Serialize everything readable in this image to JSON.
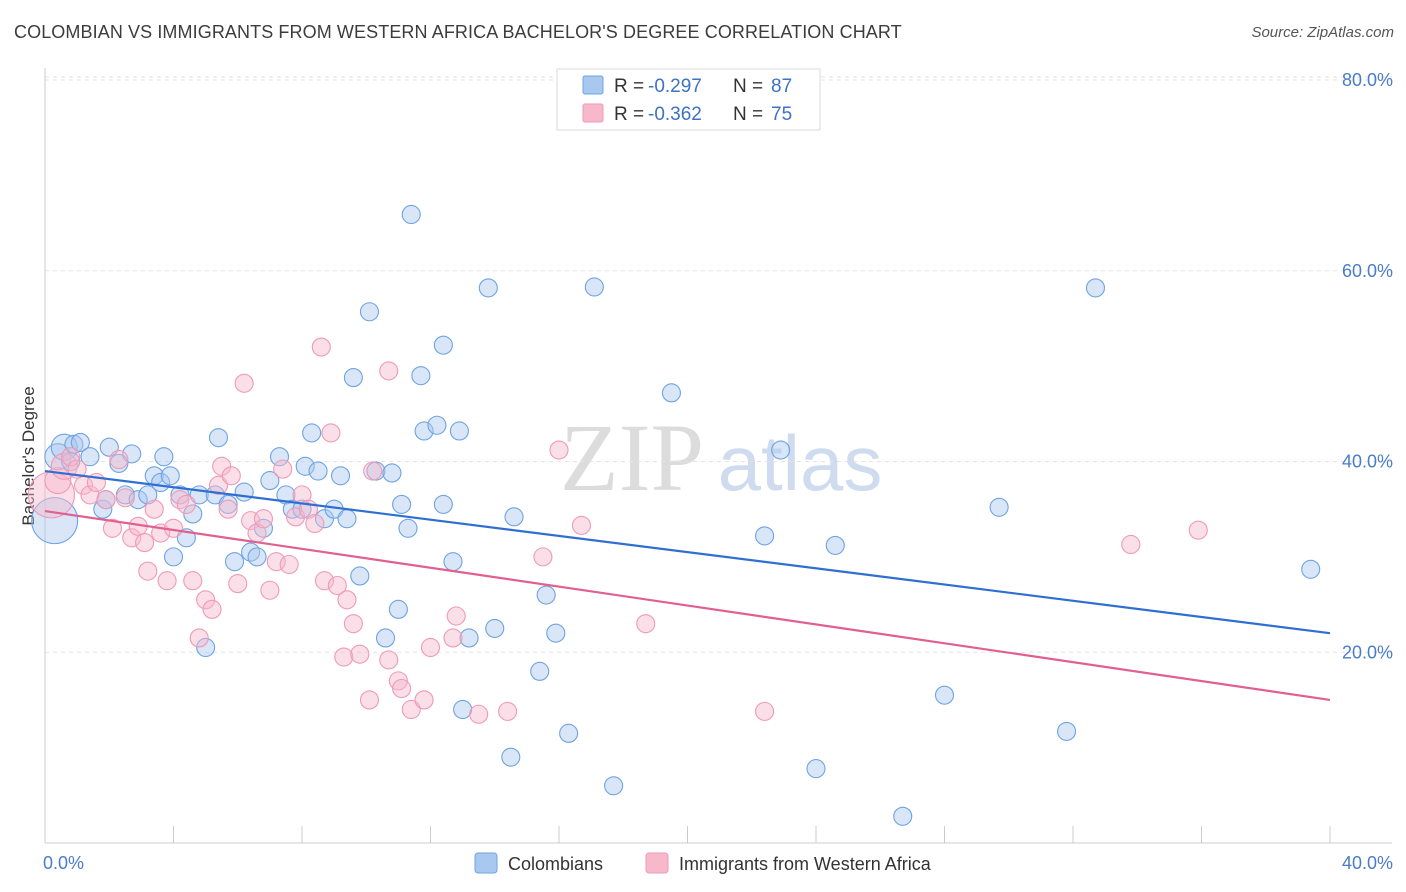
{
  "header": {
    "title": "COLOMBIAN VS IMMIGRANTS FROM WESTERN AFRICA BACHELOR'S DEGREE CORRELATION CHART",
    "source": "Source: ZipAtlas.com"
  },
  "watermark": {
    "zip": "ZIP",
    "atlas": "atlas"
  },
  "legend_top": {
    "rows": [
      {
        "r_label": "R =",
        "r_value": "-0.297",
        "n_label": "N =",
        "n_value": "87",
        "color": "#a9c8f0"
      },
      {
        "r_label": "R =",
        "r_value": "-0.362",
        "n_label": "N =",
        "n_value": "75",
        "color": "#f7b8cc"
      }
    ]
  },
  "chart_data": {
    "type": "scatter",
    "title": "COLOMBIAN VS IMMIGRANTS FROM WESTERN AFRICA BACHELOR'S DEGREE CORRELATION CHART",
    "xlabel": "",
    "ylabel": "Bachelor's Degree",
    "xlim": [
      0,
      40
    ],
    "ylim": [
      0,
      80
    ],
    "x_ticks_labeled": [
      "0.0%",
      "40.0%"
    ],
    "y_ticks": [
      {
        "value": 20,
        "label": "20.0%"
      },
      {
        "value": 40,
        "label": "40.0%"
      },
      {
        "value": 60,
        "label": "60.0%"
      },
      {
        "value": 80,
        "label": "80.0%"
      }
    ],
    "grid": "horizontal dashed",
    "legend_placement": "bottom-center",
    "series": [
      {
        "name": "Colombians",
        "color": "#6fa3e3",
        "fill": "#a9c8f0",
        "line_color": "#2f6fd1",
        "trend": {
          "x": [
            0,
            40
          ],
          "y": [
            39.0,
            22.0
          ]
        },
        "points": [
          [
            0.3,
            33.8,
            3
          ],
          [
            0.4,
            40.5,
            2
          ],
          [
            0.6,
            41.5,
            2
          ],
          [
            0.8,
            40.0,
            1
          ],
          [
            0.9,
            41.8,
            1
          ],
          [
            1.1,
            42.0,
            1
          ],
          [
            1.4,
            40.5,
            1
          ],
          [
            1.8,
            35.0,
            1
          ],
          [
            1.9,
            36.0,
            1
          ],
          [
            2.0,
            41.5,
            1
          ],
          [
            2.3,
            39.8,
            1
          ],
          [
            2.5,
            36.5,
            1
          ],
          [
            2.7,
            40.8,
            1
          ],
          [
            2.9,
            36.0,
            1
          ],
          [
            3.2,
            36.5,
            1
          ],
          [
            3.4,
            38.5,
            1
          ],
          [
            3.6,
            37.8,
            1
          ],
          [
            3.7,
            40.5,
            1
          ],
          [
            3.9,
            38.5,
            1
          ],
          [
            4.0,
            30.0,
            1
          ],
          [
            4.2,
            36.5,
            1
          ],
          [
            4.4,
            32.0,
            1
          ],
          [
            4.6,
            34.5,
            1
          ],
          [
            4.8,
            36.5,
            1
          ],
          [
            5.0,
            20.5,
            1
          ],
          [
            5.3,
            36.5,
            1
          ],
          [
            5.4,
            42.5,
            1
          ],
          [
            5.7,
            35.5,
            1
          ],
          [
            5.9,
            29.5,
            1
          ],
          [
            6.2,
            36.8,
            1
          ],
          [
            6.4,
            30.5,
            1
          ],
          [
            6.6,
            30.0,
            1
          ],
          [
            6.8,
            33.0,
            1
          ],
          [
            7.0,
            38.0,
            1
          ],
          [
            7.3,
            40.5,
            1
          ],
          [
            7.5,
            36.5,
            1
          ],
          [
            7.7,
            35.0,
            1
          ],
          [
            8.0,
            35.0,
            1
          ],
          [
            8.1,
            39.5,
            1
          ],
          [
            8.3,
            43.0,
            1
          ],
          [
            8.5,
            39.0,
            1
          ],
          [
            8.7,
            34.0,
            1
          ],
          [
            9.0,
            35.0,
            1
          ],
          [
            9.2,
            38.5,
            1
          ],
          [
            9.4,
            34.0,
            1
          ],
          [
            9.6,
            48.8,
            1
          ],
          [
            9.8,
            28.0,
            1
          ],
          [
            10.1,
            55.7,
            1
          ],
          [
            10.3,
            39.0,
            1
          ],
          [
            10.6,
            21.5,
            1
          ],
          [
            10.8,
            38.8,
            1
          ],
          [
            11.0,
            24.5,
            1
          ],
          [
            11.1,
            35.5,
            1
          ],
          [
            11.3,
            33.0,
            1
          ],
          [
            11.4,
            65.9,
            1
          ],
          [
            11.7,
            49.0,
            1
          ],
          [
            11.8,
            43.2,
            1
          ],
          [
            12.2,
            43.8,
            1
          ],
          [
            12.4,
            52.2,
            1
          ],
          [
            12.4,
            35.5,
            1
          ],
          [
            12.7,
            29.5,
            1
          ],
          [
            12.9,
            43.2,
            1
          ],
          [
            13.0,
            14.0,
            1
          ],
          [
            13.2,
            21.5,
            1
          ],
          [
            13.8,
            58.2,
            1
          ],
          [
            14.0,
            22.5,
            1
          ],
          [
            14.5,
            9.0,
            1
          ],
          [
            14.6,
            34.2,
            1
          ],
          [
            15.4,
            18.0,
            1
          ],
          [
            15.6,
            26.0,
            1
          ],
          [
            15.9,
            22.0,
            1
          ],
          [
            16.3,
            11.5,
            1
          ],
          [
            17.1,
            58.3,
            1
          ],
          [
            17.7,
            6.0,
            1
          ],
          [
            19.5,
            47.2,
            1
          ],
          [
            22.4,
            32.2,
            1
          ],
          [
            22.9,
            41.2,
            1
          ],
          [
            24.0,
            7.8,
            1
          ],
          [
            24.6,
            31.2,
            1
          ],
          [
            26.7,
            2.8,
            1
          ],
          [
            28.0,
            15.5,
            1
          ],
          [
            29.7,
            35.2,
            1
          ],
          [
            31.8,
            11.7,
            1
          ],
          [
            32.7,
            58.2,
            1
          ],
          [
            39.4,
            28.7,
            1
          ]
        ]
      },
      {
        "name": "Immigrants from Western Africa",
        "color": "#ef9ab6",
        "fill": "#f7b8cc",
        "line_color": "#e0608f",
        "trend": {
          "x": [
            0,
            40
          ],
          "y": [
            34.8,
            15.0
          ]
        },
        "points": [
          [
            0.2,
            36.5,
            3
          ],
          [
            0.4,
            38.0,
            2
          ],
          [
            0.6,
            39.5,
            2
          ],
          [
            0.8,
            40.5,
            1
          ],
          [
            1.0,
            39.2,
            1
          ],
          [
            1.2,
            37.5,
            1
          ],
          [
            1.4,
            36.5,
            1
          ],
          [
            1.6,
            37.8,
            1
          ],
          [
            1.9,
            36.0,
            1
          ],
          [
            2.1,
            33.0,
            1
          ],
          [
            2.3,
            40.2,
            1
          ],
          [
            2.5,
            36.2,
            1
          ],
          [
            2.7,
            32.0,
            1
          ],
          [
            2.9,
            33.2,
            1
          ],
          [
            3.1,
            31.5,
            1
          ],
          [
            3.2,
            28.5,
            1
          ],
          [
            3.4,
            35.0,
            1
          ],
          [
            3.6,
            32.5,
            1
          ],
          [
            3.8,
            27.5,
            1
          ],
          [
            4.0,
            33.0,
            1
          ],
          [
            4.2,
            36.0,
            1
          ],
          [
            4.4,
            35.5,
            1
          ],
          [
            4.6,
            27.5,
            1
          ],
          [
            4.8,
            21.5,
            1
          ],
          [
            5.0,
            25.5,
            1
          ],
          [
            5.2,
            24.5,
            1
          ],
          [
            5.4,
            37.5,
            1
          ],
          [
            5.5,
            39.5,
            1
          ],
          [
            5.7,
            35.0,
            1
          ],
          [
            5.8,
            38.5,
            1
          ],
          [
            6.0,
            27.2,
            1
          ],
          [
            6.2,
            48.2,
            1
          ],
          [
            6.4,
            33.8,
            1
          ],
          [
            6.6,
            32.5,
            1
          ],
          [
            6.8,
            34.0,
            1
          ],
          [
            7.0,
            26.5,
            1
          ],
          [
            7.2,
            29.5,
            1
          ],
          [
            7.4,
            39.2,
            1
          ],
          [
            7.6,
            29.2,
            1
          ],
          [
            7.8,
            34.2,
            1
          ],
          [
            8.0,
            36.5,
            1
          ],
          [
            8.2,
            35.0,
            1
          ],
          [
            8.4,
            33.5,
            1
          ],
          [
            8.6,
            52.0,
            1
          ],
          [
            8.7,
            27.5,
            1
          ],
          [
            8.9,
            43.0,
            1
          ],
          [
            9.1,
            27.0,
            1
          ],
          [
            9.3,
            19.5,
            1
          ],
          [
            9.4,
            25.5,
            1
          ],
          [
            9.6,
            23.0,
            1
          ],
          [
            9.8,
            19.8,
            1
          ],
          [
            10.2,
            39.0,
            1
          ],
          [
            10.1,
            15.0,
            1
          ],
          [
            10.7,
            49.5,
            1
          ],
          [
            10.7,
            19.2,
            1
          ],
          [
            11.0,
            17.0,
            1
          ],
          [
            11.1,
            16.2,
            1
          ],
          [
            11.4,
            14.0,
            1
          ],
          [
            11.8,
            15.0,
            1
          ],
          [
            12.0,
            20.5,
            1
          ],
          [
            12.7,
            21.5,
            1
          ],
          [
            12.8,
            23.8,
            1
          ],
          [
            13.5,
            13.5,
            1
          ],
          [
            14.4,
            13.8,
            1
          ],
          [
            15.5,
            30.0,
            1
          ],
          [
            16.0,
            41.2,
            1
          ],
          [
            16.7,
            33.3,
            1
          ],
          [
            18.7,
            23.0,
            1
          ],
          [
            22.4,
            13.8,
            1
          ],
          [
            33.8,
            31.3,
            1
          ],
          [
            35.9,
            32.8,
            1
          ]
        ]
      }
    ]
  }
}
